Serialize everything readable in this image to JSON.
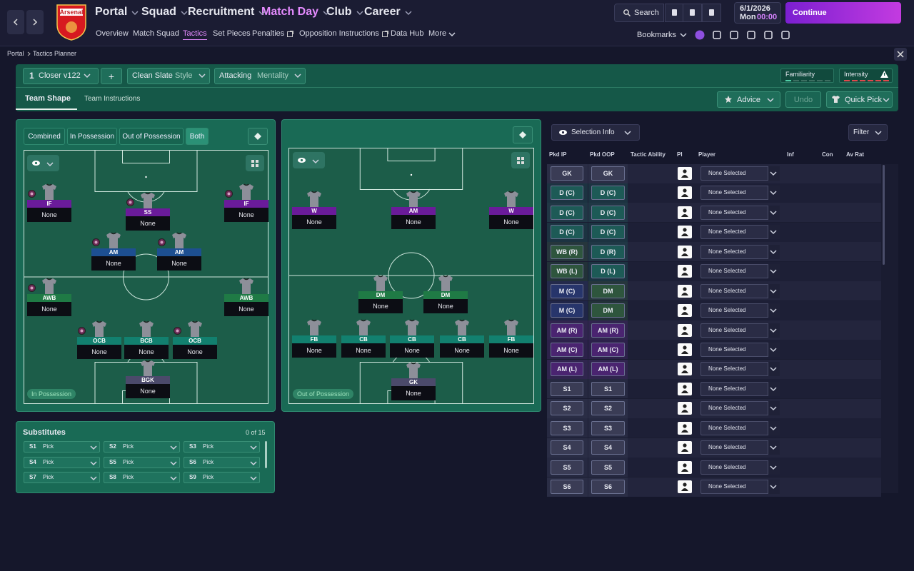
{
  "nav": {
    "club": "Arsenal",
    "main": [
      "Portal",
      "Squad",
      "Recruitment",
      "Match Day",
      "Club",
      "Career"
    ],
    "sub": [
      "Overview",
      "Match Squad",
      "Tactics",
      "Set Pieces",
      "Penalties",
      "Opposition Instructions",
      "Data Hub",
      "More"
    ],
    "search": "Search",
    "date": "6/1/2026",
    "day": "Mon",
    "time": "00:00",
    "continue": "Continue",
    "bookmarks": "Bookmarks"
  },
  "breadcrumb": [
    "Portal",
    "Tactics Planner"
  ],
  "toolbar": {
    "tactic_number": "1",
    "tactic": "Closer v122",
    "add": "+",
    "style_value": "Clean Slate",
    "style_label": "Style",
    "mentality_value": "Attacking",
    "mentality_label": "Mentality",
    "familiarity": "Familiarity",
    "intensity": "Intensity"
  },
  "tabs": [
    "Team Shape",
    "Team Instructions"
  ],
  "actions": [
    "Advice",
    "Undo",
    "Quick Pick"
  ],
  "view_toggle": [
    "Combined",
    "In Possession",
    "Out of Possession",
    "Both"
  ],
  "pitch_ip": {
    "label": "In Possession",
    "players": [
      {
        "role": "IF",
        "name": "None",
        "color": "#6a1b9a"
      },
      {
        "role": "SS",
        "name": "None",
        "color": "#6a1b9a"
      },
      {
        "role": "IF",
        "name": "None",
        "color": "#6a1b9a"
      },
      {
        "role": "AM",
        "name": "None",
        "color": "#1d4f91"
      },
      {
        "role": "AM",
        "name": "None",
        "color": "#1d4f91"
      },
      {
        "role": "AWB",
        "name": "None",
        "color": "#1f7a45"
      },
      {
        "role": "AWB",
        "name": "None",
        "color": "#1f7a45"
      },
      {
        "role": "OCB",
        "name": "None",
        "color": "#12806f"
      },
      {
        "role": "BCB",
        "name": "None",
        "color": "#12806f"
      },
      {
        "role": "OCB",
        "name": "None",
        "color": "#12806f"
      },
      {
        "role": "BGK",
        "name": "None",
        "color": "#4b4a6b"
      }
    ]
  },
  "pitch_oop": {
    "label": "Out of Possession",
    "players": [
      {
        "role": "W",
        "name": "None",
        "color": "#6a1b9a"
      },
      {
        "role": "AM",
        "name": "None",
        "color": "#6a1b9a"
      },
      {
        "role": "W",
        "name": "None",
        "color": "#6a1b9a"
      },
      {
        "role": "DM",
        "name": "None",
        "color": "#1f7a45"
      },
      {
        "role": "DM",
        "name": "None",
        "color": "#1f7a45"
      },
      {
        "role": "FB",
        "name": "None",
        "color": "#12806f"
      },
      {
        "role": "CB",
        "name": "None",
        "color": "#12806f"
      },
      {
        "role": "CB",
        "name": "None",
        "color": "#12806f"
      },
      {
        "role": "CB",
        "name": "None",
        "color": "#12806f"
      },
      {
        "role": "FB",
        "name": "None",
        "color": "#12806f"
      },
      {
        "role": "GK",
        "name": "None",
        "color": "#4b4a6b"
      }
    ]
  },
  "substitutes": {
    "title": "Substitutes",
    "count": "0 of 15",
    "slots": [
      {
        "slot": "S1",
        "value": "Pick"
      },
      {
        "slot": "S2",
        "value": "Pick"
      },
      {
        "slot": "S3",
        "value": "Pick"
      },
      {
        "slot": "S4",
        "value": "Pick"
      },
      {
        "slot": "S5",
        "value": "Pick"
      },
      {
        "slot": "S6",
        "value": "Pick"
      },
      {
        "slot": "S7",
        "value": "Pick"
      },
      {
        "slot": "S8",
        "value": "Pick"
      },
      {
        "slot": "S9",
        "value": "Pick"
      }
    ]
  },
  "selection": {
    "button": "Selection Info",
    "filter": "Filter",
    "columns": [
      "Pkd IP",
      "Pkd OOP",
      "Tactic Ability",
      "PI",
      "Player",
      "Inf",
      "Con",
      "Av Rat"
    ],
    "rows": [
      {
        "ip": "GK",
        "oop": "GK",
        "player": "None Selected",
        "ip_color": "#3a3c55",
        "oop_color": "#3a3c55"
      },
      {
        "ip": "D (C)",
        "oop": "D (C)",
        "player": "None Selected",
        "ip_color": "#1d5a56",
        "oop_color": "#1d5a56"
      },
      {
        "ip": "D (C)",
        "oop": "D (C)",
        "player": "None Selected",
        "ip_color": "#1d5a56",
        "oop_color": "#1d5a56"
      },
      {
        "ip": "D (C)",
        "oop": "D (C)",
        "player": "None Selected",
        "ip_color": "#1d5a56",
        "oop_color": "#1d5a56"
      },
      {
        "ip": "WB (R)",
        "oop": "D (R)",
        "player": "None Selected",
        "ip_color": "#2e553d",
        "oop_color": "#1d5a56"
      },
      {
        "ip": "WB (L)",
        "oop": "D (L)",
        "player": "None Selected",
        "ip_color": "#2e553d",
        "oop_color": "#1d5a56"
      },
      {
        "ip": "M (C)",
        "oop": "DM",
        "player": "None Selected",
        "ip_color": "#27356b",
        "oop_color": "#2e553d"
      },
      {
        "ip": "M (C)",
        "oop": "DM",
        "player": "None Selected",
        "ip_color": "#27356b",
        "oop_color": "#2e553d"
      },
      {
        "ip": "AM (R)",
        "oop": "AM (R)",
        "player": "None Selected",
        "ip_color": "#4a2470",
        "oop_color": "#4a2470"
      },
      {
        "ip": "AM (C)",
        "oop": "AM (C)",
        "player": "None Selected",
        "ip_color": "#4a2470",
        "oop_color": "#4a2470"
      },
      {
        "ip": "AM (L)",
        "oop": "AM (L)",
        "player": "None Selected",
        "ip_color": "#4a2470",
        "oop_color": "#4a2470"
      },
      {
        "ip": "S1",
        "oop": "S1",
        "player": "None Selected",
        "ip_color": "#3a3c55",
        "oop_color": "#3a3c55"
      },
      {
        "ip": "S2",
        "oop": "S2",
        "player": "None Selected",
        "ip_color": "#3a3c55",
        "oop_color": "#3a3c55"
      },
      {
        "ip": "S3",
        "oop": "S3",
        "player": "None Selected",
        "ip_color": "#3a3c55",
        "oop_color": "#3a3c55"
      },
      {
        "ip": "S4",
        "oop": "S4",
        "player": "None Selected",
        "ip_color": "#3a3c55",
        "oop_color": "#3a3c55"
      },
      {
        "ip": "S5",
        "oop": "S5",
        "player": "None Selected",
        "ip_color": "#3a3c55",
        "oop_color": "#3a3c55"
      },
      {
        "ip": "S6",
        "oop": "S6",
        "player": "None Selected",
        "ip_color": "#3a3c55",
        "oop_color": "#3a3c55"
      }
    ]
  }
}
